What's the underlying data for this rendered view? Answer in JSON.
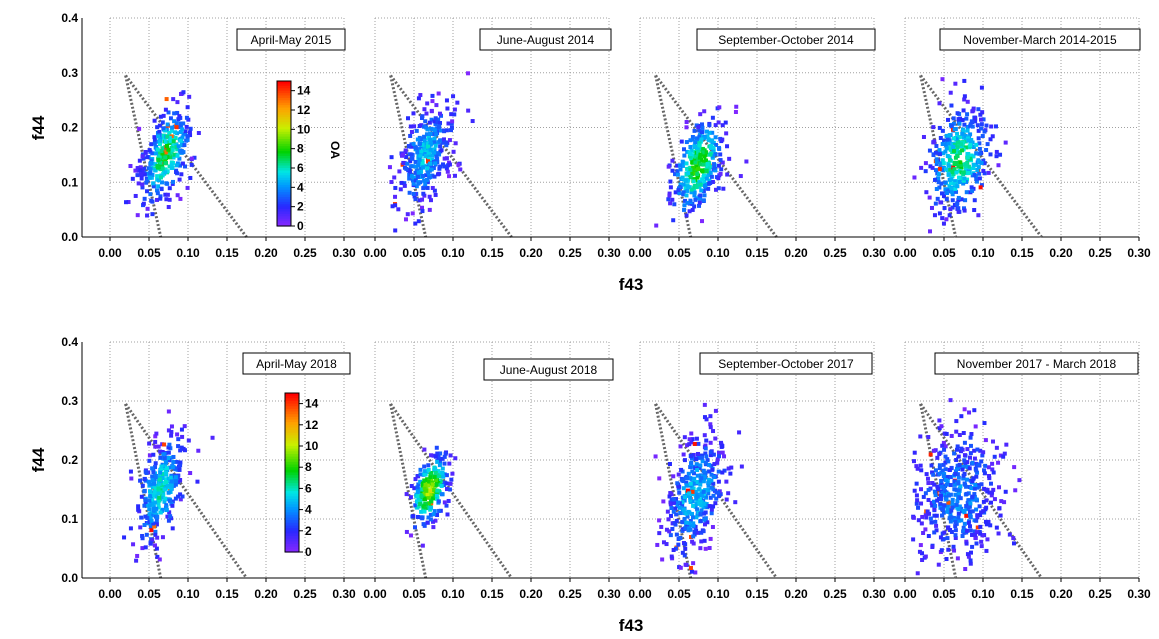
{
  "chart_data": {
    "type": "heatmap",
    "xlabel": "f43",
    "ylabel": "f44",
    "xlim": [
      0,
      0.3
    ],
    "ylim": [
      0,
      0.4
    ],
    "x_ticks": [
      "0.00",
      "0.05",
      "0.10",
      "0.15",
      "0.20",
      "0.25",
      "0.30"
    ],
    "y_ticks": [
      "0.0",
      "0.1",
      "0.2",
      "0.3",
      "0.4"
    ],
    "grid": true,
    "colorbar": {
      "label": "OA",
      "ticks": [
        "0",
        "2",
        "4",
        "6",
        "8",
        "10",
        "12",
        "14"
      ],
      "range": [
        0,
        15
      ],
      "colormap": "rainbow"
    },
    "triangle": {
      "apex": [
        0.02,
        0.295
      ],
      "left_base_x": 0.065,
      "right_base_x": 0.175,
      "style": "dotted"
    },
    "rows": [
      {
        "panels": [
          {
            "title": "April-May 2015",
            "cloud": {
              "cx": 0.072,
              "cy": 0.15,
              "sx": 0.016,
              "sy": 0.045,
              "rot": -0.55,
              "n": 320,
              "hot": 6.5
            }
          },
          {
            "title": "June-August 2014",
            "cloud": {
              "cx": 0.065,
              "cy": 0.15,
              "sx": 0.017,
              "sy": 0.045,
              "rot": -0.5,
              "n": 340,
              "hot": 4
            }
          },
          {
            "title": "September-October 2014",
            "cloud": {
              "cx": 0.075,
              "cy": 0.13,
              "sx": 0.017,
              "sy": 0.045,
              "rot": -0.55,
              "n": 320,
              "hot": 7
            }
          },
          {
            "title": "November-March 2014-2015",
            "cloud": {
              "cx": 0.07,
              "cy": 0.14,
              "sx": 0.02,
              "sy": 0.05,
              "rot": -0.3,
              "n": 380,
              "hot": 6
            }
          }
        ]
      },
      {
        "panels": [
          {
            "title": "April-May 2018",
            "cloud": {
              "cx": 0.065,
              "cy": 0.15,
              "sx": 0.015,
              "sy": 0.045,
              "rot": -0.5,
              "n": 320,
              "hot": 5
            }
          },
          {
            "title": "June-August 2018",
            "cloud": {
              "cx": 0.07,
              "cy": 0.15,
              "sx": 0.012,
              "sy": 0.03,
              "rot": -0.5,
              "n": 230,
              "hot": 9
            }
          },
          {
            "title": "September-October 2017",
            "cloud": {
              "cx": 0.07,
              "cy": 0.14,
              "sx": 0.02,
              "sy": 0.05,
              "rot": -0.5,
              "n": 380,
              "hot": 4
            }
          },
          {
            "title": "November 2017 - March 2018",
            "cloud": {
              "cx": 0.068,
              "cy": 0.14,
              "sx": 0.028,
              "sy": 0.055,
              "rot": -0.15,
              "n": 460,
              "hot": 2.8
            }
          }
        ]
      }
    ]
  }
}
